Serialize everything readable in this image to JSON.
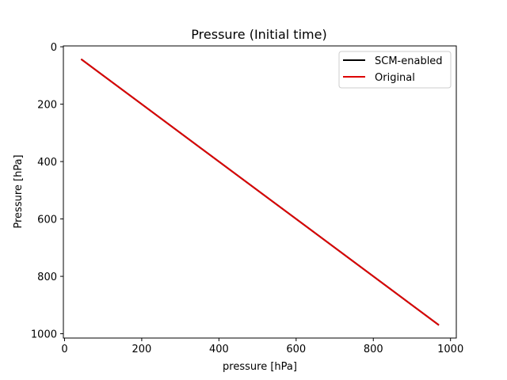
{
  "chart_data": {
    "type": "line",
    "title": "Pressure (Initial time)",
    "xlabel": "pressure [hPa]",
    "ylabel": "Pressure [hPa]",
    "xlim": [
      -3,
      1015
    ],
    "ylim": [
      1015,
      -3
    ],
    "y_inverted": true,
    "grid": false,
    "legend_position": "top-right",
    "xticks": [
      0,
      200,
      400,
      600,
      800,
      1000
    ],
    "yticks": [
      0,
      200,
      400,
      600,
      800,
      1000
    ],
    "series": [
      {
        "name": "SCM-enabled",
        "color": "#000000",
        "x": [
          43,
          970
        ],
        "y": [
          43,
          970
        ]
      },
      {
        "name": "Original",
        "color": "#dd0000",
        "x": [
          43,
          970
        ],
        "y": [
          43,
          970
        ]
      }
    ]
  }
}
